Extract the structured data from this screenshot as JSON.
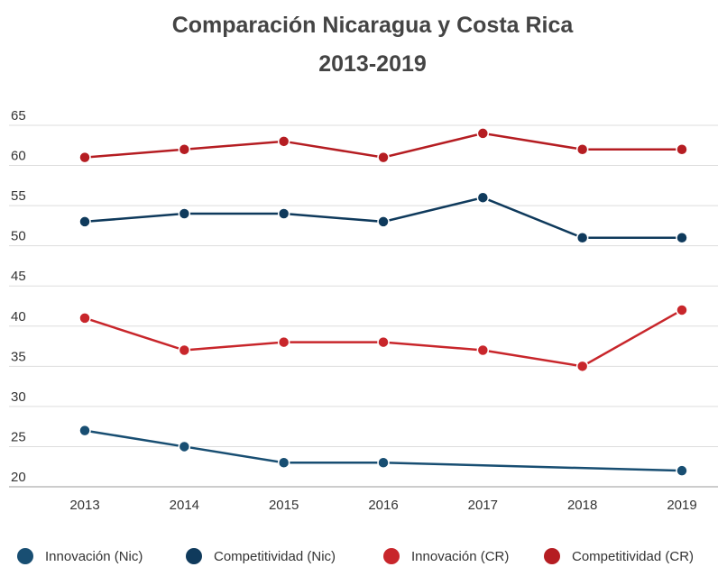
{
  "chart_data": {
    "type": "line",
    "title": "Comparación Nicaragua y Costa Rica",
    "subtitle": "2013-2019",
    "categories": [
      "2013",
      "2014",
      "2015",
      "2016",
      "2017",
      "2018",
      "2019"
    ],
    "series": [
      {
        "name": "Innovación (Nic)",
        "color": "#184e72",
        "values": [
          27,
          25,
          23,
          23,
          null,
          null,
          22
        ]
      },
      {
        "name": "Competitividad (Nic)",
        "color": "#0f3a5c",
        "values": [
          53,
          54,
          54,
          53,
          56,
          51,
          51
        ]
      },
      {
        "name": "Innovación (CR)",
        "color": "#c8262b",
        "values": [
          41,
          37,
          38,
          38,
          37,
          35,
          42
        ]
      },
      {
        "name": "Competitividad (CR)",
        "color": "#b51d22",
        "values": [
          61,
          62,
          63,
          61,
          64,
          62,
          62
        ]
      }
    ],
    "connect_gaps": true,
    "ylim": [
      20,
      65
    ],
    "yticks": [
      20,
      25,
      30,
      35,
      40,
      45,
      50,
      55,
      60,
      65
    ],
    "grid": true,
    "legend": "bottom"
  }
}
